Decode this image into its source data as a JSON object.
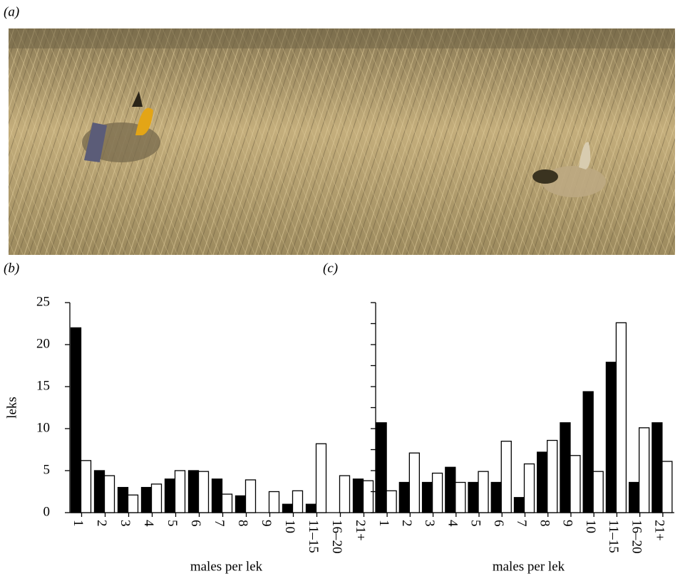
{
  "panel_labels": [
    "(a)",
    "(b)",
    "(c)"
  ],
  "chart_data": [
    {
      "type": "bar",
      "xlabel": "males per lek",
      "ylabel": "leks",
      "categories": [
        "1",
        "2",
        "3",
        "4",
        "5",
        "6",
        "7",
        "8",
        "9",
        "10",
        "11–15",
        "16–20",
        "21+"
      ],
      "series": [
        {
          "color": "#000000",
          "values": [
            22,
            5,
            3,
            3,
            4,
            5,
            4,
            2,
            0,
            1,
            1,
            0,
            4
          ]
        },
        {
          "color": "#ffffff",
          "values": [
            6.2,
            4.4,
            2.1,
            3.4,
            5,
            4.9,
            2.2,
            3.9,
            2.5,
            2.6,
            8.2,
            4.4,
            3.8
          ]
        }
      ],
      "ylim": [
        0,
        25
      ],
      "yticks": [
        0,
        5,
        10,
        15,
        20,
        25
      ],
      "ytick_labels": true
    },
    {
      "type": "bar",
      "xlabel": "males per lek",
      "categories": [
        "1",
        "2",
        "3",
        "4",
        "5",
        "6",
        "7",
        "8",
        "9",
        "10",
        "11–15",
        "16–20",
        "21+"
      ],
      "series": [
        {
          "color": "#000000",
          "values": [
            10.7,
            3.6,
            3.6,
            5.4,
            3.6,
            3.6,
            1.8,
            7.2,
            10.7,
            14.4,
            17.9,
            3.6,
            10.7
          ]
        },
        {
          "color": "#ffffff",
          "values": [
            2.6,
            7.1,
            4.7,
            3.6,
            4.9,
            8.5,
            5.8,
            8.6,
            6.8,
            4.9,
            22.6,
            10.1,
            6.1
          ]
        }
      ],
      "ylim": [
        0,
        25
      ],
      "yticks": [
        0,
        2.5,
        5,
        7.5,
        10,
        12.5,
        15,
        17.5,
        20,
        22.5,
        25
      ],
      "ytick_labels": false
    }
  ]
}
